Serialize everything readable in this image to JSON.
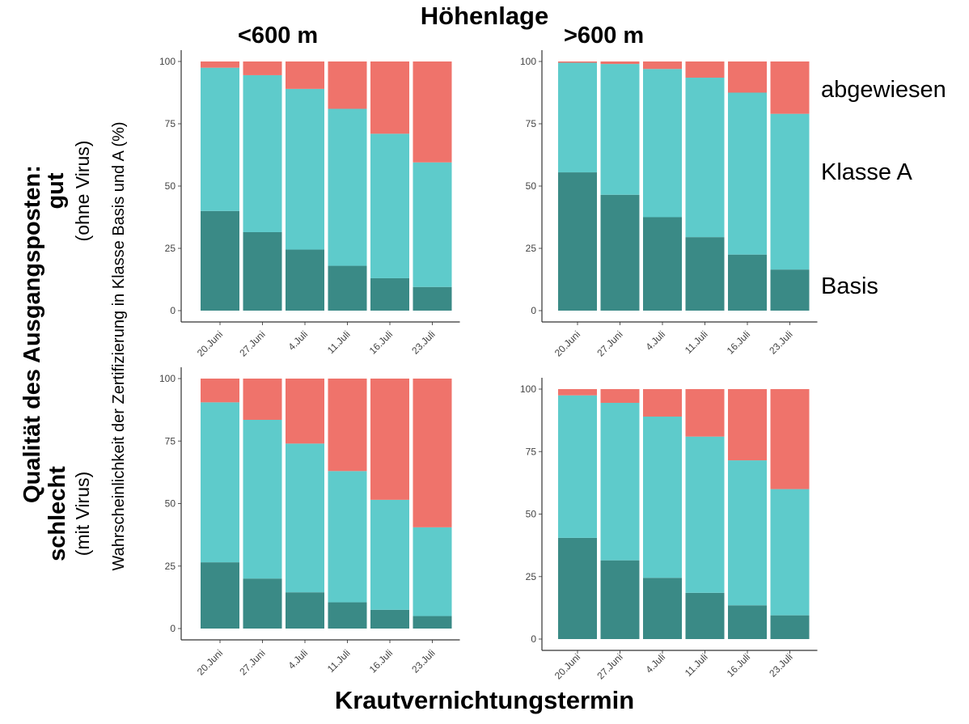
{
  "title": "Höhenlage",
  "columns": [
    "<600 m",
    ">600 m"
  ],
  "y_axis_title": "Qualität des Ausgangsposten:",
  "rows": [
    {
      "label": "gut",
      "sublabel": "(ohne Virus)"
    },
    {
      "label": "schlecht",
      "sublabel": "(mit Virus)"
    }
  ],
  "ylabel": "Wahrscheinlichkeit der Zertifizierung in Klasse Basis und A (%)",
  "xlabel": "Krautvernichtungstermin",
  "legend": [
    "abgewiesen",
    "Klasse A",
    "Basis"
  ],
  "colors": {
    "Basis": "#3a8a86",
    "Klasse A": "#5ecbcb",
    "abgewiesen": "#ef736b"
  },
  "chart_data": [
    {
      "type": "bar",
      "stacked": true,
      "panel": "gut / <600 m",
      "categories": [
        "20.Juni",
        "27.Juni",
        "4.Juli",
        "11.Juli",
        "16.Juli",
        "23.Juli"
      ],
      "yticks": [
        "0",
        "25",
        "50",
        "75",
        "100"
      ],
      "ylim": [
        0,
        100
      ],
      "series": [
        {
          "name": "Basis",
          "values": [
            40,
            31.5,
            24.5,
            18,
            13,
            9.5
          ]
        },
        {
          "name": "Klasse A",
          "values": [
            57.5,
            63,
            64.5,
            63,
            58,
            50
          ]
        },
        {
          "name": "abgewiesen",
          "values": [
            2.5,
            5.5,
            11,
            19,
            29,
            40.5
          ]
        }
      ]
    },
    {
      "type": "bar",
      "stacked": true,
      "panel": "gut / >600 m",
      "categories": [
        "20.Juni",
        "27.Juni",
        "4.Juli",
        "11.Juli",
        "16.Juli",
        "23.Juli"
      ],
      "yticks": [
        "0",
        "25",
        "50",
        "75",
        "100"
      ],
      "ylim": [
        0,
        100
      ],
      "series": [
        {
          "name": "Basis",
          "values": [
            55.5,
            46.5,
            37.5,
            29.5,
            22.5,
            16.5
          ]
        },
        {
          "name": "Klasse A",
          "values": [
            44,
            52.5,
            59.5,
            64,
            65,
            62.5
          ]
        },
        {
          "name": "abgewiesen",
          "values": [
            0.5,
            1,
            3,
            6.5,
            12.5,
            21
          ]
        }
      ]
    },
    {
      "type": "bar",
      "stacked": true,
      "panel": "schlecht / <600 m",
      "categories": [
        "20.Juni",
        "27.Juni",
        "4.Juli",
        "11.Juli",
        "16.Juli",
        "23.Juli"
      ],
      "yticks": [
        "0",
        "25",
        "50",
        "75",
        "100"
      ],
      "ylim": [
        0,
        100
      ],
      "series": [
        {
          "name": "Basis",
          "values": [
            26.5,
            20,
            14.5,
            10.5,
            7.5,
            5
          ]
        },
        {
          "name": "Klasse A",
          "values": [
            64,
            63.5,
            59.5,
            52.5,
            44,
            35.5
          ]
        },
        {
          "name": "abgewiesen",
          "values": [
            9.5,
            16.5,
            26,
            37,
            48.5,
            59.5
          ]
        }
      ]
    },
    {
      "type": "bar",
      "stacked": true,
      "panel": "schlecht / >600 m",
      "categories": [
        "20.Juni",
        "27.Juni",
        "4.Juli",
        "11.Juli",
        "16.Juli",
        "23.Juli"
      ],
      "yticks": [
        "0",
        "25",
        "50",
        "75",
        "100"
      ],
      "ylim": [
        0,
        100
      ],
      "series": [
        {
          "name": "Basis",
          "values": [
            40.5,
            31.5,
            24.5,
            18.5,
            13.5,
            9.5
          ]
        },
        {
          "name": "Klasse A",
          "values": [
            57,
            63,
            64.5,
            62.5,
            58,
            50.5
          ]
        },
        {
          "name": "abgewiesen",
          "values": [
            2.5,
            5.5,
            11,
            19,
            28.5,
            40
          ]
        }
      ]
    }
  ]
}
